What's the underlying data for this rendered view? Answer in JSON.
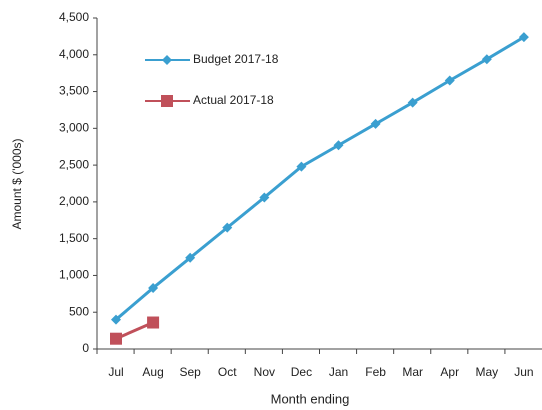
{
  "chart_data": {
    "type": "line",
    "x_label": "Month ending",
    "y_label": "Amount $ ('000s)",
    "categories": [
      "Jul",
      "Aug",
      "Sep",
      "Oct",
      "Nov",
      "Dec",
      "Jan",
      "Feb",
      "Mar",
      "Apr",
      "May",
      "Jun"
    ],
    "series": [
      {
        "name": "Budget 2017-18",
        "color": "#3a9fd0",
        "marker": "diamond",
        "values": [
          400,
          830,
          1240,
          1650,
          2060,
          2480,
          2770,
          3060,
          3350,
          3650,
          3940,
          4240
        ]
      },
      {
        "name": "Actual 2017-18",
        "color": "#c0505a",
        "marker": "square",
        "values": [
          140,
          360,
          null,
          null,
          null,
          null,
          null,
          null,
          null,
          null,
          null,
          null
        ]
      }
    ],
    "ylim": [
      0,
      4500
    ],
    "yticks": [
      0,
      500,
      {
        "value": 1000,
        "label": "1,000"
      },
      {
        "value": 1500,
        "label": "1,500"
      },
      {
        "value": 2000,
        "label": "2,000"
      },
      {
        "value": 2500,
        "label": "2,500"
      },
      {
        "value": 3000,
        "label": "3,000"
      },
      {
        "value": 3500,
        "label": "3,500"
      },
      {
        "value": 4000,
        "label": "4,000"
      },
      {
        "value": 4500,
        "label": "4,500"
      }
    ],
    "grid": false,
    "legend": "upper-left"
  }
}
